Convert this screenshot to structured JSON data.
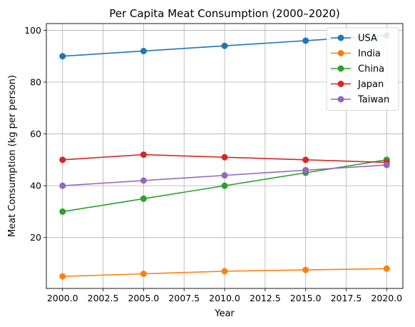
{
  "chart_data": {
    "type": "line",
    "title": "Per Capita Meat Consumption (2000–2020)",
    "xlabel": "Year",
    "ylabel": "Meat Consumption (kg per person)",
    "x": [
      2000,
      2005,
      2010,
      2015,
      2020
    ],
    "xlim": [
      1999,
      2021
    ],
    "ylim": [
      0.35,
      102.6
    ],
    "xticks": [
      2000.0,
      2002.5,
      2005.0,
      2007.5,
      2010.0,
      2012.5,
      2015.0,
      2017.5,
      2020.0
    ],
    "xtick_labels": [
      "2000.0",
      "2002.5",
      "2005.0",
      "2007.5",
      "2010.0",
      "2012.5",
      "2015.0",
      "2017.5",
      "2020.0"
    ],
    "yticks": [
      20,
      40,
      60,
      80,
      100
    ],
    "ytick_labels": [
      "20",
      "40",
      "60",
      "80",
      "100"
    ],
    "grid": true,
    "legend_position": "top-right",
    "series": [
      {
        "name": "USA",
        "color": "#1f77b4",
        "values": [
          90,
          92,
          94,
          96,
          98
        ]
      },
      {
        "name": "India",
        "color": "#ff7f0e",
        "values": [
          5,
          6,
          7,
          7.5,
          8
        ]
      },
      {
        "name": "China",
        "color": "#2ca02c",
        "values": [
          30,
          35,
          40,
          45,
          50
        ]
      },
      {
        "name": "Japan",
        "color": "#d62728",
        "values": [
          50,
          52,
          51,
          50,
          49
        ]
      },
      {
        "name": "Taiwan",
        "color": "#9467bd",
        "values": [
          40,
          42,
          44,
          46,
          48
        ]
      }
    ]
  }
}
